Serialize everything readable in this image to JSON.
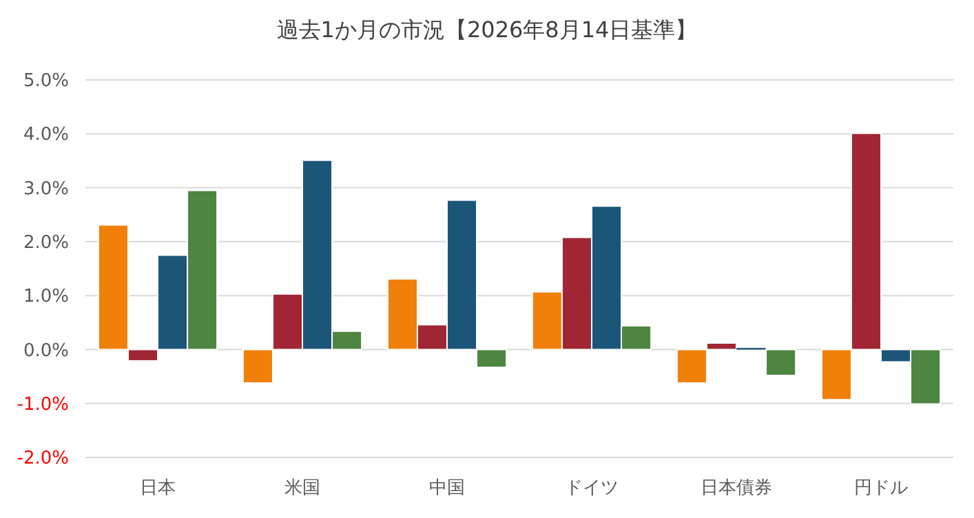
{
  "chart_data": {
    "type": "bar",
    "title": "過去1か月の市況【2026年8月14日基準】",
    "categories": [
      "日本",
      "米国",
      "中国",
      "ドイツ",
      "日本債券",
      "円ドル"
    ],
    "series": [
      {
        "color": "#f0800a",
        "values": [
          2.31,
          -0.62,
          1.31,
          1.07,
          -0.62,
          -0.93
        ]
      },
      {
        "color": "#a02635",
        "values": [
          -0.21,
          1.03,
          0.46,
          2.08,
          0.12,
          4.01
        ]
      },
      {
        "color": "#1b5679",
        "values": [
          1.75,
          3.51,
          2.77,
          2.66,
          0.03,
          -0.23
        ]
      },
      {
        "color": "#4e8540",
        "values": [
          2.95,
          0.34,
          -0.33,
          0.44,
          -0.48,
          -1.01
        ]
      }
    ],
    "ylim": [
      -2,
      5
    ],
    "yticks": [
      {
        "value": -2,
        "label": "-2.0%"
      },
      {
        "value": -1,
        "label": "-1.0%"
      },
      {
        "value": 0,
        "label": "0.0%"
      },
      {
        "value": 1,
        "label": "1.0%"
      },
      {
        "value": 2,
        "label": "2.0%"
      },
      {
        "value": 3,
        "label": "3.0%"
      },
      {
        "value": 4,
        "label": "4.0%"
      },
      {
        "value": 5,
        "label": "5.0%"
      }
    ],
    "grid": "y"
  }
}
